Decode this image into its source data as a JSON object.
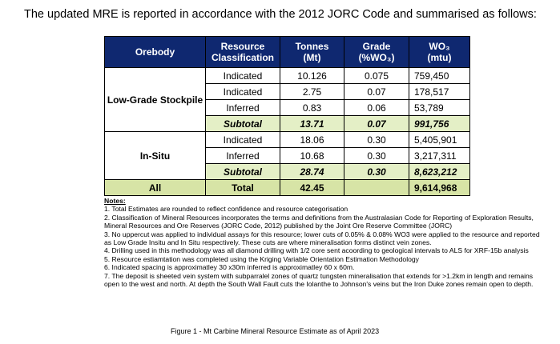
{
  "intro": "The updated MRE is reported in accordance with the 2012 JORC Code and summarised as follows:",
  "table": {
    "headers": {
      "orebody": "Orebody",
      "classification_1": "Resource",
      "classification_2": "Classification",
      "tonnes_1": "Tonnes",
      "tonnes_2": "(Mt)",
      "grade_1": "Grade",
      "grade_2": "(%WO₃)",
      "wo3_1": "WO₃",
      "wo3_2": "(mtu)"
    },
    "lgs": {
      "name": "Low-Grade Stockpile",
      "rows": [
        {
          "classification": "Indicated",
          "tonnes": "10.126",
          "grade": "0.075",
          "wo3": "759,450"
        },
        {
          "classification": "Indicated",
          "tonnes": "2.75",
          "grade": "0.07",
          "wo3": "178,517"
        },
        {
          "classification": "Inferred",
          "tonnes": "0.83",
          "grade": "0.06",
          "wo3": "53,789"
        }
      ],
      "subtotal": {
        "label": "Subtotal",
        "tonnes": "13.71",
        "grade": "0.07",
        "wo3": "991,756"
      }
    },
    "insitu": {
      "name": "In-Situ",
      "rows": [
        {
          "classification": "Indicated",
          "tonnes": "18.06",
          "grade": "0.30",
          "wo3": "5,405,901"
        },
        {
          "classification": "Inferred",
          "tonnes": "10.68",
          "grade": "0.30",
          "wo3": "3,217,311"
        }
      ],
      "subtotal": {
        "label": "Subtotal",
        "tonnes": "28.74",
        "grade": "0.30",
        "wo3": "8,623,212"
      }
    },
    "all": {
      "name": "All",
      "label": "Total",
      "tonnes": "42.45",
      "grade": "",
      "wo3": "9,614,968"
    }
  },
  "notes": {
    "title": "Notes:",
    "items": [
      "1. Total Estimates are rounded to reflect confidence and resource categorisation",
      "2. Classification of Mineral Resources incorporates the terms and definitions from the Australasian Code for Reporting of Exploration Results, Mineral Resources and Ore Reserves (JORC Code, 2012) published by the Joint Ore Reserve Committee (JORC)",
      "3. No uppercut was applied to individual assays for this resource; lower cuts of 0.05% & 0.08% WO3 were applied to the resource and reported as Low Grade Insitu and In Situ respectively. These cuts are where mineralisation forms distinct vein zones.",
      "4. Drilling used in this methodology was all diamond drilling with 1/2 core sent acoording to geological intervals to ALS for XRF-15b analysis",
      "5. Resource estiamtation was completed using the Kriging Variable Orientation Estimation Methodology",
      "6. Indicated spacing is approximatley 30 x30m inferred is approximatley 60 x 60m.",
      "7. The deposit is sheeted vein system with subparralel zones of quartz tungsten mineralisation that extends for >1.2km in length and remains open to the west and north. At depth the South Wall Fault cuts the Iolanthe to Johnson's veins but the Iron Duke zones remain open to depth."
    ]
  },
  "caption": "Figure 1 - Mt Carbine Mineral Resource Estimate as of April 2023"
}
